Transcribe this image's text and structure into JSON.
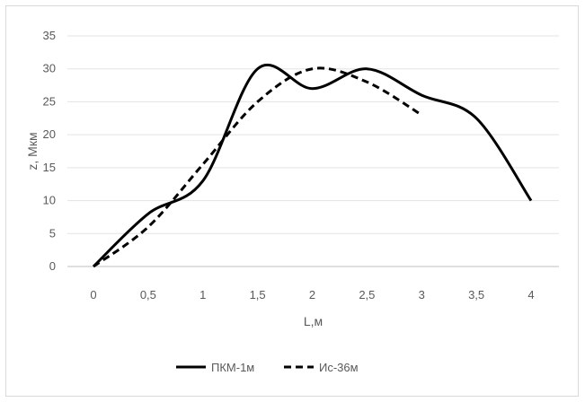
{
  "chart_data": {
    "type": "line",
    "xlabel": "L,м",
    "ylabel": "z,  Мкм",
    "x_ticks": [
      "0",
      "0,5",
      "1",
      "1,5",
      "2",
      "2,5",
      "3",
      "3,5",
      "4"
    ],
    "y_ticks": [
      "0",
      "5",
      "10",
      "15",
      "20",
      "25",
      "30",
      "35"
    ],
    "xlim": [
      0,
      4
    ],
    "ylim": [
      0,
      35
    ],
    "grid": "horizontal",
    "legend": "bottom",
    "series": [
      {
        "name": "ПКМ-1м",
        "style": "solid",
        "color": "#000000",
        "x": [
          0,
          0.5,
          1,
          1.5,
          2,
          2.5,
          3,
          3.5,
          4
        ],
        "y": [
          0,
          8,
          13,
          30,
          27,
          30,
          26,
          22.5,
          10
        ]
      },
      {
        "name": "Ис-36м",
        "style": "dashed",
        "color": "#000000",
        "x": [
          0,
          0.5,
          1,
          1.5,
          2,
          2.5,
          3
        ],
        "y": [
          0,
          6,
          15.5,
          25,
          30,
          28,
          23
        ]
      }
    ]
  }
}
